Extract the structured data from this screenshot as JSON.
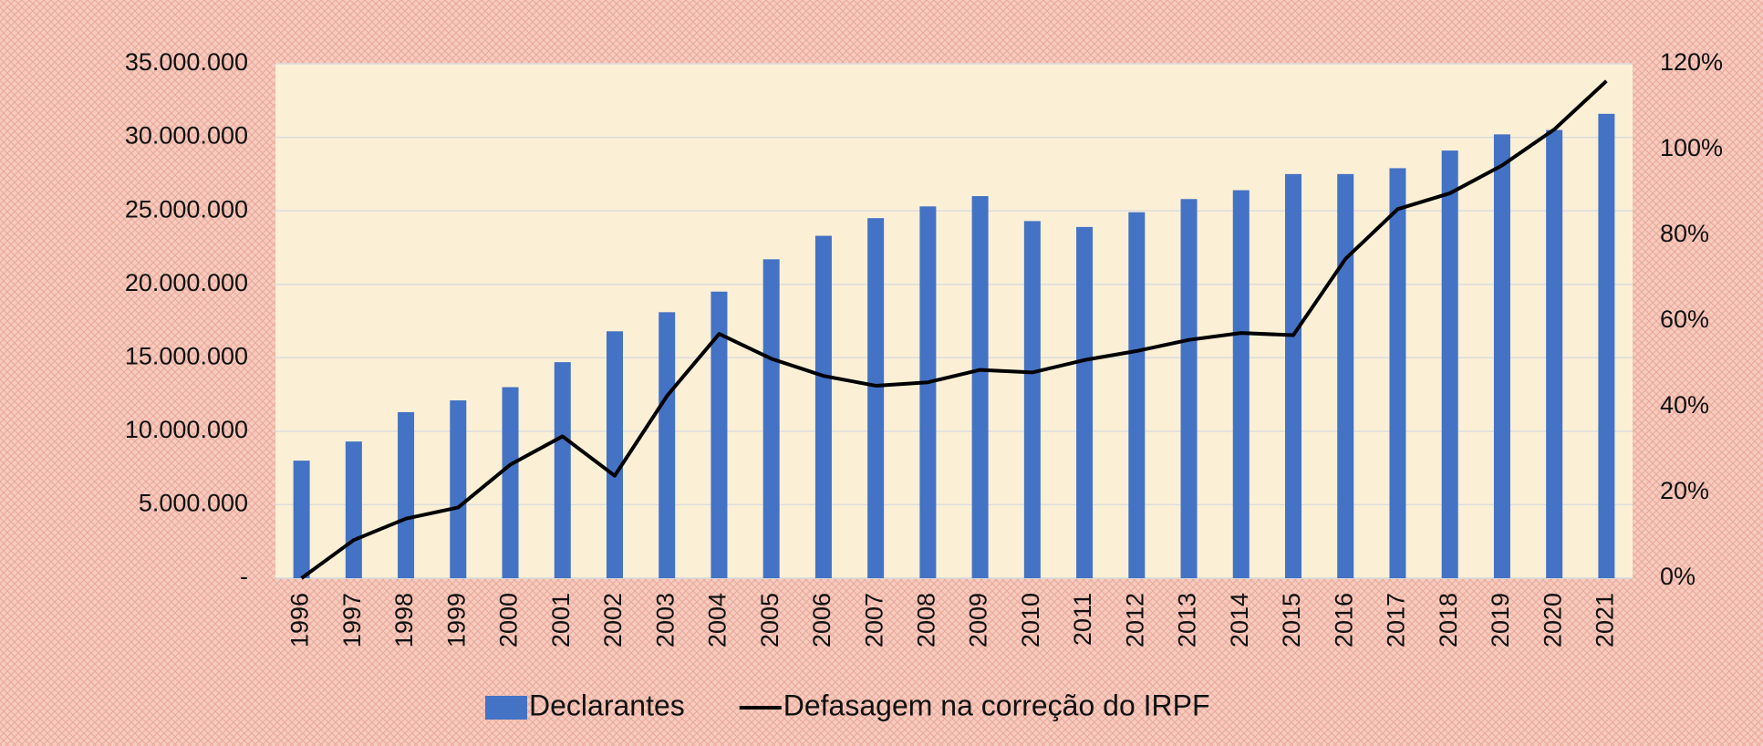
{
  "chart_data": {
    "type": "bar-line",
    "categories": [
      "1996",
      "1997",
      "1998",
      "1999",
      "2000",
      "2001",
      "2002",
      "2003",
      "2004",
      "2005",
      "2006",
      "2007",
      "2008",
      "2009",
      "2010",
      "2011",
      "2012",
      "2013",
      "2014",
      "2015",
      "2016",
      "2017",
      "2018",
      "2019",
      "2020",
      "2021"
    ],
    "series": [
      {
        "name": "Declarantes",
        "color": "#4472c4",
        "type": "bar",
        "values": [
          8000000,
          9300000,
          11300000,
          12100000,
          13000000,
          14700000,
          16800000,
          18100000,
          19500000,
          21700000,
          23300000,
          24500000,
          25300000,
          26000000,
          24300000,
          23900000,
          24900000,
          25800000,
          26400000,
          27500000,
          27500000,
          27900000,
          29100000,
          30200000,
          30500000,
          31600000
        ]
      },
      {
        "name": "Defasagem na correção do IRPF",
        "color": "#000000",
        "type": "line",
        "axis": "y2",
        "values": [
          0,
          8.9,
          13.9,
          16.5,
          26.5,
          33.1,
          23.9,
          42.5,
          57.0,
          51.2,
          47.2,
          44.9,
          45.7,
          48.6,
          48.0,
          50.9,
          53.0,
          55.6,
          57.2,
          56.7,
          74.5,
          86.1,
          89.8,
          96.3,
          104.7,
          116.0
        ]
      }
    ],
    "ylim": [
      0,
      35000000
    ],
    "yticks": [
      {
        "value": 0,
        "label": "-"
      },
      {
        "value": 5000000,
        "label": "5.000.000"
      },
      {
        "value": 10000000,
        "label": "10.000.000"
      },
      {
        "value": 15000000,
        "label": "15.000.000"
      },
      {
        "value": 20000000,
        "label": "20.000.000"
      },
      {
        "value": 25000000,
        "label": "25.000.000"
      },
      {
        "value": 30000000,
        "label": "30.000.000"
      },
      {
        "value": 35000000,
        "label": "35.000.000"
      }
    ],
    "y2lim": [
      0,
      120
    ],
    "y2ticks": [
      {
        "value": 0,
        "label": "0%"
      },
      {
        "value": 20,
        "label": "20%"
      },
      {
        "value": 40,
        "label": "40%"
      },
      {
        "value": 60,
        "label": "60%"
      },
      {
        "value": 80,
        "label": "80%"
      },
      {
        "value": 100,
        "label": "100%"
      },
      {
        "value": 120,
        "label": "120%"
      }
    ],
    "grid": true,
    "legend": "bottom"
  }
}
